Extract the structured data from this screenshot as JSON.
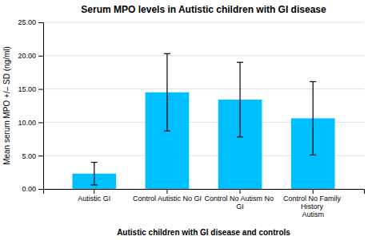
{
  "chart_data": {
    "type": "bar",
    "title": "Serum MPO levels in Autistic children with GI disease",
    "xlabel": "Autistic children with GI disease and controls",
    "ylabel": "Mean serum MPO +/– SD (ng/ml)",
    "categories": [
      "Autistic GI",
      "Control Autistic No GI",
      "Control No Autism No GI",
      "Control No Family History\nAutism"
    ],
    "values": [
      2.3,
      14.5,
      13.4,
      10.6
    ],
    "errors": [
      1.7,
      5.8,
      5.6,
      5.5
    ],
    "color": "#00BFFF",
    "ylim": [
      0,
      25.0
    ],
    "yticks": [
      {
        "value": 0.0,
        "label": "0.00"
      },
      {
        "value": 5.0,
        "label": "5.00"
      },
      {
        "value": 10.0,
        "label": "10.00"
      },
      {
        "value": 15.0,
        "label": "15.00"
      },
      {
        "value": 20.0,
        "label": "20.00"
      },
      {
        "value": 25.0,
        "label": "25.00"
      }
    ],
    "grid": true
  }
}
